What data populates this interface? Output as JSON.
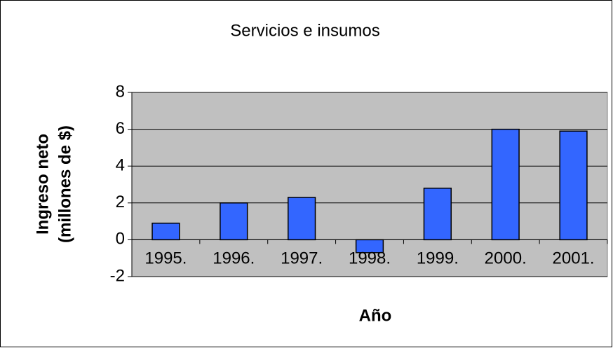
{
  "chart_data": {
    "type": "bar",
    "title": "Servicios e insumos",
    "x_label": "Año",
    "y_label": [
      "Ingreso neto",
      "(millones de $)"
    ],
    "categories": [
      "1995.",
      "1996.",
      "1997.",
      "1998.",
      "1999.",
      "2000.",
      "2001."
    ],
    "values": [
      0.9,
      2.0,
      2.3,
      -0.7,
      2.8,
      6.0,
      5.9
    ],
    "color": "#3366ff",
    "ylim": [
      -2,
      8
    ],
    "yticks": [
      -2,
      0,
      2,
      4,
      6,
      8
    ],
    "grid": true
  }
}
